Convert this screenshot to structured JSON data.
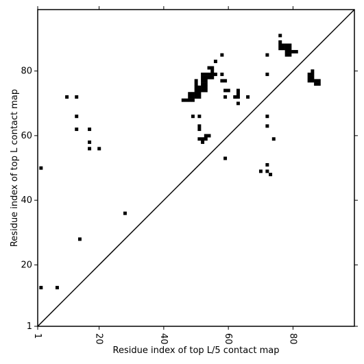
{
  "chart_data": {
    "type": "heatmap",
    "title": "",
    "xlabel": "Residue index of top L/5 contact map",
    "ylabel": "Residue index of top L contact map",
    "xlim": [
      1,
      99
    ],
    "ylim": [
      1,
      99
    ],
    "xticks": [
      1,
      20,
      40,
      60,
      80
    ],
    "yticks": [
      1,
      20,
      40,
      60,
      80
    ],
    "diagonal": true,
    "grid": false,
    "cell_color": "#000000",
    "line_color": "#000000",
    "upper_triangle_contacts": [
      [
        2,
        50
      ],
      [
        2,
        13
      ],
      [
        7,
        13
      ],
      [
        14,
        28
      ],
      [
        28,
        36
      ],
      [
        10,
        72
      ],
      [
        13,
        72
      ],
      [
        13,
        66
      ],
      [
        13,
        62
      ],
      [
        17,
        62
      ],
      [
        17,
        58
      ],
      [
        17,
        56
      ],
      [
        20,
        56
      ],
      [
        46,
        71
      ],
      [
        47,
        71
      ],
      [
        48,
        71
      ],
      [
        49,
        71
      ],
      [
        48,
        72
      ],
      [
        49,
        72
      ],
      [
        50,
        72
      ],
      [
        51,
        72
      ],
      [
        48,
        73
      ],
      [
        49,
        73
      ],
      [
        50,
        73
      ],
      [
        51,
        73
      ],
      [
        50,
        74
      ],
      [
        51,
        74
      ],
      [
        52,
        74
      ],
      [
        53,
        74
      ],
      [
        50,
        75
      ],
      [
        51,
        75
      ],
      [
        52,
        75
      ],
      [
        53,
        75
      ],
      [
        50,
        76
      ],
      [
        52,
        76
      ],
      [
        53,
        76
      ],
      [
        50,
        77
      ],
      [
        52,
        77
      ],
      [
        53,
        77
      ],
      [
        52,
        78
      ],
      [
        53,
        78
      ],
      [
        54,
        78
      ],
      [
        55,
        78
      ],
      [
        52,
        79
      ],
      [
        53,
        79
      ],
      [
        54,
        79
      ],
      [
        55,
        79
      ],
      [
        56,
        79
      ],
      [
        55,
        80
      ],
      [
        55,
        81
      ],
      [
        54,
        81
      ],
      [
        56,
        83
      ],
      [
        58,
        79
      ],
      [
        58,
        77
      ],
      [
        59,
        77
      ],
      [
        59,
        74
      ],
      [
        60,
        74
      ],
      [
        58,
        85
      ],
      [
        59,
        72
      ],
      [
        62,
        72
      ],
      [
        63,
        72
      ],
      [
        63,
        73
      ],
      [
        63,
        74
      ],
      [
        63,
        70
      ],
      [
        66,
        72
      ],
      [
        49,
        66
      ],
      [
        51,
        66
      ],
      [
        51,
        63
      ],
      [
        51,
        62
      ],
      [
        51,
        59
      ],
      [
        52,
        59
      ],
      [
        52,
        58
      ],
      [
        53,
        59
      ],
      [
        53,
        60
      ],
      [
        54,
        60
      ],
      [
        59,
        53
      ],
      [
        70,
        49
      ],
      [
        72,
        49
      ],
      [
        72,
        51
      ],
      [
        73,
        48
      ],
      [
        74,
        59
      ],
      [
        72,
        66
      ],
      [
        72,
        63
      ],
      [
        72,
        79
      ],
      [
        72,
        85
      ],
      [
        76,
        91
      ],
      [
        76,
        89
      ],
      [
        76,
        88
      ],
      [
        76,
        87
      ],
      [
        77,
        87
      ],
      [
        77,
        88
      ],
      [
        78,
        88
      ],
      [
        78,
        87
      ],
      [
        78,
        86
      ],
      [
        78,
        85
      ],
      [
        79,
        88
      ],
      [
        79,
        87
      ],
      [
        79,
        86
      ],
      [
        79,
        85
      ],
      [
        80,
        86
      ],
      [
        81,
        86
      ],
      [
        86,
        80
      ],
      [
        85,
        79
      ],
      [
        86,
        79
      ],
      [
        85,
        78
      ],
      [
        86,
        78
      ],
      [
        85,
        77
      ],
      [
        86,
        77
      ],
      [
        87,
        77
      ],
      [
        88,
        77
      ],
      [
        87,
        76
      ],
      [
        88,
        76
      ]
    ]
  }
}
